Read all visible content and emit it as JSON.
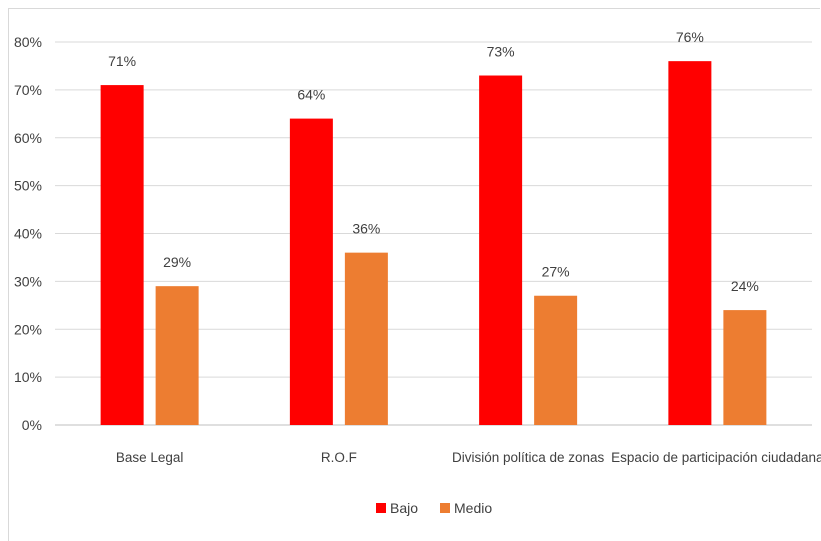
{
  "chart_data": {
    "type": "bar",
    "categories": [
      "Base Legal",
      "R.O.F",
      "División política de zonas",
      "Espacio de participación ciudadana"
    ],
    "series": [
      {
        "name": "Bajo",
        "values": [
          71,
          64,
          73,
          76
        ],
        "labels": [
          "71%",
          "64%",
          "73%",
          "76%"
        ],
        "color": "#ff0000"
      },
      {
        "name": "Medio",
        "values": [
          29,
          36,
          27,
          24
        ],
        "labels": [
          "29%",
          "36%",
          "27%",
          "24%"
        ],
        "color": "#ed7d31"
      }
    ],
    "yticks": [
      "0%",
      "10%",
      "20%",
      "30%",
      "40%",
      "50%",
      "60%",
      "70%",
      "80%"
    ],
    "ylim": [
      0,
      80
    ],
    "grid": true,
    "legend_position": "bottom",
    "title": "",
    "xlabel": "",
    "ylabel": ""
  }
}
